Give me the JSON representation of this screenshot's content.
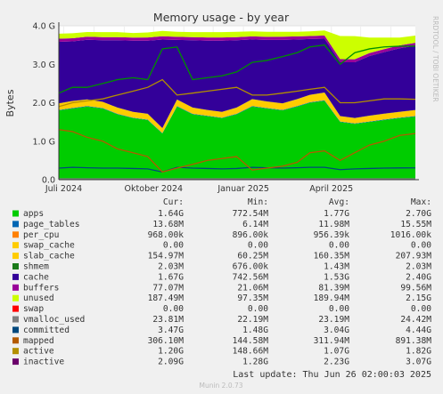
{
  "chart_data": {
    "type": "area",
    "title": "Memory usage - by year",
    "ylabel": "Bytes",
    "side_label": "RRDTOOL / TOBI OETIKER",
    "ylim": [
      0,
      4000000000
    ],
    "yticks": [
      {
        "value": 0,
        "label": "0.0"
      },
      {
        "value": 1000000000,
        "label": "1.0 G"
      },
      {
        "value": 2000000000,
        "label": "2.0 G"
      },
      {
        "value": 3000000000,
        "label": "3.0 G"
      },
      {
        "value": 4000000000,
        "label": "4.0 G"
      }
    ],
    "xticks": [
      "Juli 2024",
      "Oktober 2024",
      "Januar 2025",
      "April 2025"
    ],
    "x": [
      "2024-06-26",
      "2024-07-10",
      "2024-07-25",
      "2024-08-10",
      "2024-08-25",
      "2024-09-10",
      "2024-09-25",
      "2024-10-10",
      "2024-10-25",
      "2024-11-10",
      "2024-11-25",
      "2024-12-10",
      "2024-12-25",
      "2025-01-10",
      "2025-01-25",
      "2025-02-10",
      "2025-02-25",
      "2025-03-10",
      "2025-03-25",
      "2025-04-10",
      "2025-04-25",
      "2025-05-10",
      "2025-05-25",
      "2025-06-10",
      "2025-06-26"
    ],
    "stacked_series": [
      {
        "name": "apps",
        "color": "#00cc00",
        "values": [
          1800000000.0,
          1850000000.0,
          1900000000.0,
          1850000000.0,
          1700000000.0,
          1600000000.0,
          1550000000.0,
          1200000000.0,
          1900000000.0,
          1700000000.0,
          1650000000.0,
          1600000000.0,
          1700000000.0,
          1900000000.0,
          1850000000.0,
          1800000000.0,
          1900000000.0,
          2000000000.0,
          2050000000.0,
          1500000000.0,
          1450000000.0,
          1500000000.0,
          1550000000.0,
          1600000000.0,
          1640000000.0
        ]
      },
      {
        "name": "page_tables",
        "color": "#0066b3",
        "values": [
          12000000.0,
          13000000.0,
          13000000.0,
          12000000.0,
          12000000.0,
          11000000.0,
          11000000.0,
          10000000.0,
          12000000.0,
          12000000.0,
          11000000.0,
          11000000.0,
          12000000.0,
          12000000.0,
          12000000.0,
          12000000.0,
          12000000.0,
          13000000.0,
          13000000.0,
          11000000.0,
          11000000.0,
          12000000.0,
          13000000.0,
          13000000.0,
          13700000.0
        ]
      },
      {
        "name": "per_cpu",
        "color": "#ff8000",
        "values": [
          950000.0,
          950000.0,
          950000.0,
          950000.0,
          950000.0,
          950000.0,
          950000.0,
          950000.0,
          950000.0,
          950000.0,
          950000.0,
          950000.0,
          950000.0,
          950000.0,
          950000.0,
          950000.0,
          950000.0,
          950000.0,
          950000.0,
          950000.0,
          950000.0,
          950000.0,
          950000.0,
          960000.0,
          968000.0
        ]
      },
      {
        "name": "swap_cache",
        "color": "#ffcc00",
        "values": [
          0,
          0,
          0,
          0,
          0,
          0,
          0,
          0,
          0,
          0,
          0,
          0,
          0,
          0,
          0,
          0,
          0,
          0,
          0,
          0,
          0,
          0,
          0,
          0,
          0
        ]
      },
      {
        "name": "slab_cache",
        "color": "#ffcc00",
        "values": [
          170000000.0,
          180000000.0,
          170000000.0,
          160000000.0,
          160000000.0,
          150000000.0,
          150000000.0,
          130000000.0,
          170000000.0,
          160000000.0,
          150000000.0,
          150000000.0,
          160000000.0,
          180000000.0,
          170000000.0,
          170000000.0,
          180000000.0,
          190000000.0,
          200000000.0,
          140000000.0,
          140000000.0,
          150000000.0,
          150000000.0,
          150000000.0,
          155000000.0
        ]
      },
      {
        "name": "shmem",
        "color": "#1a7a1a",
        "values": [
          2000000.0,
          2000000.0,
          1500000.0,
          1500000.0,
          1400000.0,
          1400000.0,
          1300000.0,
          1000000.0,
          1400000.0,
          1400000.0,
          1400000.0,
          1300000.0,
          1400000.0,
          1500000.0,
          1400000.0,
          1400000.0,
          1400000.0,
          1500000.0,
          1500000.0,
          1300000.0,
          1300000.0,
          1400000.0,
          1500000.0,
          1800000.0,
          2030000.0
        ]
      },
      {
        "name": "cache",
        "color": "#330099",
        "values": [
          1600000000.0,
          1550000000.0,
          1550000000.0,
          1600000000.0,
          1750000000.0,
          1850000000.0,
          1900000000.0,
          2300000000.0,
          1550000000.0,
          1750000000.0,
          1800000000.0,
          1850000000.0,
          1750000000.0,
          1550000000.0,
          1600000000.0,
          1650000000.0,
          1550000000.0,
          1450000000.0,
          1400000000.0,
          1400000000.0,
          1450000000.0,
          1550000000.0,
          1600000000.0,
          1650000000.0,
          1670000000.0
        ]
      },
      {
        "name": "buffers",
        "color": "#990099",
        "values": [
          80000000.0,
          80000000.0,
          82000000.0,
          81000000.0,
          80000000.0,
          80000000.0,
          82000000.0,
          85000000.0,
          80000000.0,
          81000000.0,
          82000000.0,
          82000000.0,
          81000000.0,
          80000000.0,
          80000000.0,
          81000000.0,
          80000000.0,
          80000000.0,
          82000000.0,
          80000000.0,
          78000000.0,
          78000000.0,
          78000000.0,
          77000000.0,
          77000000.0
        ]
      },
      {
        "name": "unused",
        "color": "#ccff00",
        "values": [
          130000000.0,
          130000000.0,
          120000000.0,
          130000000.0,
          130000000.0,
          120000000.0,
          130000000.0,
          140000000.0,
          130000000.0,
          130000000.0,
          140000000.0,
          140000000.0,
          140000000.0,
          130000000.0,
          130000000.0,
          130000000.0,
          120000000.0,
          120000000.0,
          130000000.0,
          600000000.0,
          600000000.0,
          400000000.0,
          300000000.0,
          200000000.0,
          187000000.0
        ]
      },
      {
        "name": "swap",
        "color": "#ff0000",
        "values": [
          0,
          0,
          0,
          0,
          0,
          0,
          0,
          0,
          0,
          0,
          0,
          0,
          0,
          0,
          0,
          0,
          0,
          0,
          0,
          0,
          0,
          0,
          0,
          0,
          0
        ]
      }
    ],
    "line_series": [
      {
        "name": "vmalloc_used",
        "color": "#808080",
        "values": [
          23000000.0,
          23000000.0,
          23000000.0,
          23000000.0,
          23000000.0,
          23000000.0,
          23000000.0,
          23000000.0,
          23000000.0,
          23000000.0,
          23000000.0,
          23000000.0,
          23000000.0,
          23000000.0,
          23000000.0,
          23000000.0,
          23000000.0,
          23000000.0,
          23000000.0,
          23000000.0,
          23000000.0,
          23000000.0,
          23000000.0,
          23500000.0,
          23800000.0
        ]
      },
      {
        "name": "committed",
        "color": "#008f00",
        "values": [
          2250000000.0,
          2400000000.0,
          2400000000.0,
          2500000000.0,
          2600000000.0,
          2650000000.0,
          2600000000.0,
          3400000000.0,
          3450000000.0,
          2600000000.0,
          2650000000.0,
          2700000000.0,
          2800000000.0,
          3050000000.0,
          3100000000.0,
          3200000000.0,
          3300000000.0,
          3450000000.0,
          3500000000.0,
          3000000000.0,
          3300000000.0,
          3400000000.0,
          3450000000.0,
          3470000000.0,
          3470000000.0
        ]
      },
      {
        "name": "mapped",
        "color": "#00487d",
        "values": [
          300000000.0,
          320000000.0,
          310000000.0,
          300000000.0,
          300000000.0,
          290000000.0,
          280000000.0,
          200000000.0,
          320000000.0,
          300000000.0,
          290000000.0,
          280000000.0,
          290000000.0,
          320000000.0,
          310000000.0,
          300000000.0,
          310000000.0,
          320000000.0,
          320000000.0,
          260000000.0,
          280000000.0,
          290000000.0,
          300000000.0,
          305000000.0,
          306000000.0
        ]
      },
      {
        "name": "active",
        "color": "#b35a00",
        "values": [
          1300000000.0,
          1250000000.0,
          1100000000.0,
          1000000000.0,
          800000000.0,
          700000000.0,
          600000000.0,
          200000000.0,
          300000000.0,
          400000000.0,
          500000000.0,
          550000000.0,
          600000000.0,
          250000000.0,
          300000000.0,
          350000000.0,
          450000000.0,
          700000000.0,
          750000000.0,
          500000000.0,
          700000000.0,
          900000000.0,
          1000000000.0,
          1150000000.0,
          1200000000.0
        ]
      },
      {
        "name": "inactive",
        "color": "#b38f00",
        "values": [
          1900000000.0,
          2000000000.0,
          2050000000.0,
          2100000000.0,
          2200000000.0,
          2300000000.0,
          2400000000.0,
          2600000000.0,
          2200000000.0,
          2250000000.0,
          2300000000.0,
          2350000000.0,
          2400000000.0,
          2200000000.0,
          2200000000.0,
          2250000000.0,
          2300000000.0,
          2350000000.0,
          2400000000.0,
          2000000000.0,
          2000000000.0,
          2050000000.0,
          2100000000.0,
          2100000000.0,
          2090000000.0
        ]
      }
    ],
    "legend_headers": {
      "cur": "Cur:",
      "min": "Min:",
      "avg": "Avg:",
      "max": "Max:"
    },
    "legend": [
      {
        "name": "apps",
        "color": "#00cc00",
        "cur": "1.64G",
        "min": "772.54M",
        "avg": "1.77G",
        "max": "2.70G"
      },
      {
        "name": "page_tables",
        "color": "#0066b3",
        "cur": "13.68M",
        "min": "6.14M",
        "avg": "11.98M",
        "max": "15.55M"
      },
      {
        "name": "per_cpu",
        "color": "#ff8000",
        "cur": "968.00k",
        "min": "896.00k",
        "avg": "956.39k",
        "max": "1016.00k"
      },
      {
        "name": "swap_cache",
        "color": "#ffcc00",
        "cur": "0.00",
        "min": "0.00",
        "avg": "0.00",
        "max": "0.00"
      },
      {
        "name": "slab_cache",
        "color": "#ffcc00",
        "cur": "154.97M",
        "min": "60.25M",
        "avg": "160.35M",
        "max": "207.93M"
      },
      {
        "name": "shmem",
        "color": "#1a7a1a",
        "cur": "2.03M",
        "min": "676.00k",
        "avg": "1.43M",
        "max": "2.03M"
      },
      {
        "name": "cache",
        "color": "#330099",
        "cur": "1.67G",
        "min": "742.56M",
        "avg": "1.53G",
        "max": "2.40G"
      },
      {
        "name": "buffers",
        "color": "#990099",
        "cur": "77.07M",
        "min": "21.06M",
        "avg": "81.39M",
        "max": "99.56M"
      },
      {
        "name": "unused",
        "color": "#ccff00",
        "cur": "187.49M",
        "min": "97.35M",
        "avg": "189.94M",
        "max": "2.15G"
      },
      {
        "name": "swap",
        "color": "#ff0000",
        "cur": "0.00",
        "min": "0.00",
        "avg": "0.00",
        "max": "0.00"
      },
      {
        "name": "vmalloc_used",
        "color": "#808080",
        "cur": "23.81M",
        "min": "22.19M",
        "avg": "23.19M",
        "max": "24.42M"
      },
      {
        "name": "committed",
        "color": "#00487d",
        "cur": "3.47G",
        "min": "1.48G",
        "avg": "3.04G",
        "max": "4.44G"
      },
      {
        "name": "mapped",
        "color": "#b35a00",
        "cur": "306.10M",
        "min": "144.58M",
        "avg": "311.94M",
        "max": "891.38M"
      },
      {
        "name": "active",
        "color": "#b38f00",
        "cur": "1.20G",
        "min": "148.66M",
        "avg": "1.07G",
        "max": "1.82G"
      },
      {
        "name": "inactive",
        "color": "#6b006b",
        "cur": "2.09G",
        "min": "1.28G",
        "avg": "2.23G",
        "max": "3.07G"
      }
    ],
    "last_update": "Last update: Thu Jun 26 02:00:03 2025",
    "footer": "Munin 2.0.73",
    "grid": true
  }
}
